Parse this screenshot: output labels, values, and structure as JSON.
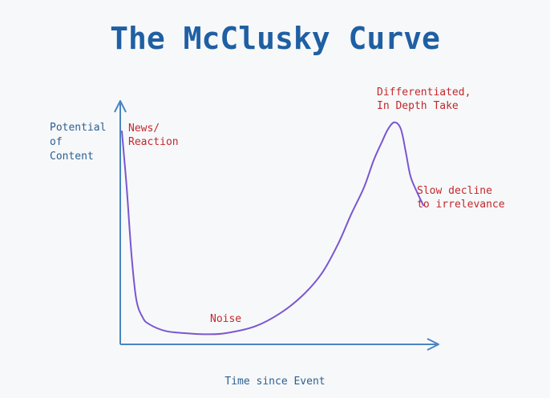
{
  "chart_data": {
    "type": "line",
    "title": "The McClusky Curve",
    "xlabel": "Time since Event",
    "ylabel": "Potential\nof\nContent",
    "xlim": [
      0,
      100
    ],
    "ylim": [
      0,
      100
    ],
    "grid": false,
    "axis_ticks": "none",
    "series": [
      {
        "color": "#7a56d2",
        "x": [
          0.5,
          2,
          3.5,
          5,
          7,
          9,
          14,
          20,
          27,
          33,
          42,
          50,
          57,
          63,
          68,
          72,
          76,
          79,
          81.5,
          83.5,
          85.5,
          87.5,
          89,
          90.5,
          92.5,
          94.5
        ],
        "y": [
          95,
          70,
          40,
          20,
          12,
          9,
          6,
          5,
          4.5,
          5,
          8,
          14,
          22,
          32,
          45,
          58,
          70,
          82,
          90,
          96,
          99,
          96,
          86,
          75,
          68,
          62
        ]
      }
    ],
    "annotations": [
      {
        "text": "News/\nReaction",
        "x": 2.5,
        "y": 95
      },
      {
        "text": "Noise",
        "x": 28,
        "y": 10
      },
      {
        "text": "Differentiated,\nIn Depth Take",
        "x": 80,
        "y": 111
      },
      {
        "text": "Slow decline\nto irrelevance",
        "x": 92.5,
        "y": 67
      }
    ],
    "colors": {
      "title": "#1f5fa3",
      "axis": "#4a85c2",
      "axis_label": "#2b5f93",
      "annotation": "#c3282d"
    }
  }
}
